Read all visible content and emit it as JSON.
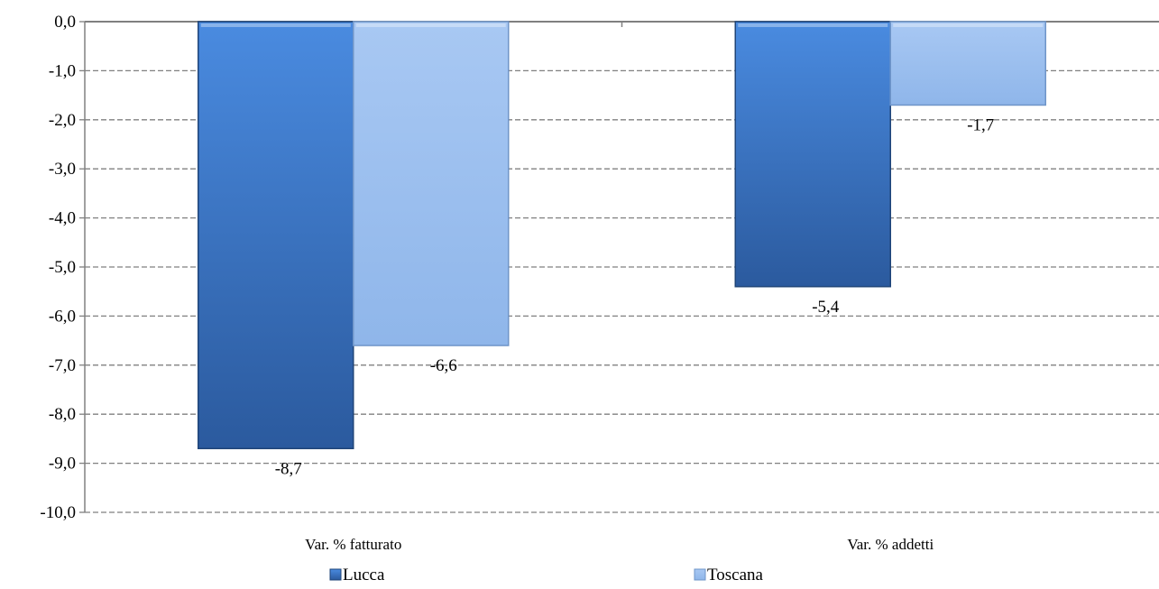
{
  "chart_data": {
    "type": "bar",
    "title": "",
    "xlabel": "",
    "ylabel": "",
    "ylim": [
      -10,
      0
    ],
    "y_ticks": [
      "0,0",
      "-1,0",
      "-2,0",
      "-3,0",
      "-4,0",
      "-5,0",
      "-6,0",
      "-7,0",
      "-8,0",
      "-9,0",
      "-10,0"
    ],
    "y_tick_values": [
      0,
      -1,
      -2,
      -3,
      -4,
      -5,
      -6,
      -7,
      -8,
      -9,
      -10
    ],
    "categories": [
      "Var. % fatturato",
      "Var. % addetti"
    ],
    "series": [
      {
        "name": "Lucca",
        "values": [
          -8.7,
          -5.4
        ],
        "labels": [
          "-8,7",
          "-5,4"
        ],
        "color": "#3a72c4"
      },
      {
        "name": "Toscana",
        "values": [
          -6.6,
          -1.7
        ],
        "labels": [
          "-6,6",
          "-1,7"
        ],
        "color": "#9bbff0"
      }
    ],
    "grid": true,
    "grid_style": "dashed",
    "legend_position": "bottom",
    "data_labels_position": "below-bar-end"
  }
}
